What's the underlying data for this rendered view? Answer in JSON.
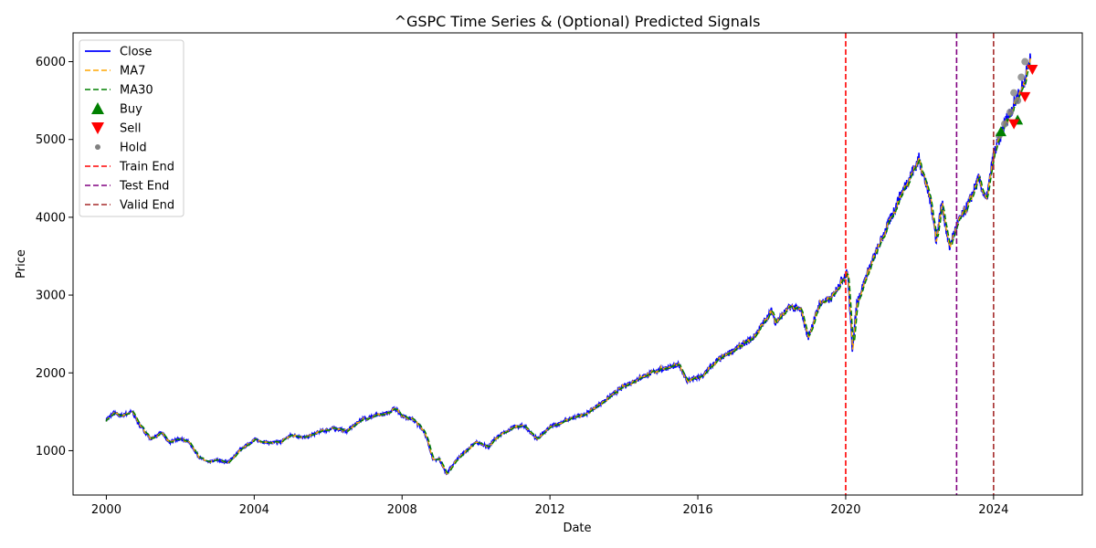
{
  "chart_data": {
    "type": "line",
    "title": "^GSPC Time Series & (Optional) Predicted Signals",
    "xlabel": "Date",
    "ylabel": "Price",
    "xlim": [
      1999.1,
      2026.4
    ],
    "ylim": [
      430,
      6370
    ],
    "x_ticks": [
      2000,
      2004,
      2008,
      2012,
      2016,
      2020,
      2024
    ],
    "x_tick_labels": [
      "2000",
      "2004",
      "2008",
      "2012",
      "2016",
      "2020",
      "2024"
    ],
    "y_ticks": [
      1000,
      2000,
      3000,
      4000,
      5000,
      6000
    ],
    "y_tick_labels": [
      "1000",
      "2000",
      "3000",
      "4000",
      "5000",
      "6000"
    ],
    "grid": false,
    "legend_position": "upper-left",
    "legend": [
      {
        "label": "Close",
        "kind": "solid-line",
        "color": "#0000ff"
      },
      {
        "label": "MA7",
        "kind": "dashed-line",
        "color": "#ffa500"
      },
      {
        "label": "MA30",
        "kind": "dashed-line",
        "color": "#008000"
      },
      {
        "label": "Buy",
        "kind": "triangle-up",
        "color": "#008000"
      },
      {
        "label": "Sell",
        "kind": "triangle-down",
        "color": "#ff0000"
      },
      {
        "label": "Hold",
        "kind": "dot",
        "color": "#808080"
      },
      {
        "label": "Train End",
        "kind": "dashed-line",
        "color": "#ff0000"
      },
      {
        "label": "Test End",
        "kind": "dashed-line",
        "color": "#800080"
      },
      {
        "label": "Valid End",
        "kind": "dashed-line",
        "color": "#a52a2a"
      }
    ],
    "close": {
      "x": [
        2000.0,
        2000.2,
        2000.4,
        2000.7,
        2000.9,
        2001.2,
        2001.5,
        2001.7,
        2001.9,
        2002.2,
        2002.5,
        2002.75,
        2003.0,
        2003.3,
        2003.6,
        2004.0,
        2004.4,
        2004.7,
        2005.0,
        2005.4,
        2005.8,
        2006.2,
        2006.5,
        2006.9,
        2007.3,
        2007.6,
        2007.8,
        2008.0,
        2008.3,
        2008.6,
        2008.85,
        2009.0,
        2009.2,
        2009.5,
        2010.0,
        2010.35,
        2010.5,
        2011.0,
        2011.3,
        2011.65,
        2012.0,
        2012.5,
        2013.0,
        2013.5,
        2014.0,
        2014.5,
        2015.0,
        2015.5,
        2015.7,
        2016.1,
        2016.5,
        2017.0,
        2017.5,
        2018.0,
        2018.1,
        2018.5,
        2018.8,
        2018.98,
        2019.3,
        2019.6,
        2019.9,
        2020.05,
        2020.18,
        2020.3,
        2020.6,
        2021.0,
        2021.5,
        2021.98,
        2022.3,
        2022.45,
        2022.6,
        2022.8,
        2023.0,
        2023.3,
        2023.6,
        2023.8,
        2024.0,
        2024.3,
        2024.6,
        2024.8,
        2025.0
      ],
      "y": [
        1400,
        1480,
        1450,
        1500,
        1330,
        1150,
        1230,
        1100,
        1150,
        1130,
        920,
        850,
        880,
        850,
        1000,
        1140,
        1100,
        1110,
        1200,
        1170,
        1250,
        1290,
        1250,
        1400,
        1450,
        1480,
        1550,
        1450,
        1400,
        1250,
        870,
        900,
        700,
        900,
        1110,
        1050,
        1150,
        1300,
        1320,
        1150,
        1300,
        1400,
        1480,
        1650,
        1830,
        1950,
        2050,
        2100,
        1900,
        1950,
        2150,
        2300,
        2450,
        2800,
        2650,
        2850,
        2800,
        2450,
        2900,
        2950,
        3200,
        3300,
        2300,
        2900,
        3300,
        3750,
        4300,
        4750,
        4200,
        3700,
        4200,
        3600,
        3900,
        4150,
        4500,
        4200,
        4800,
        5200,
        5500,
        5700,
        6050
      ]
    },
    "vertical_markers": [
      {
        "label": "Train End",
        "x": 2020.0
      },
      {
        "label": "Test End",
        "x": 2023.0
      },
      {
        "label": "Valid End",
        "x": 2024.0
      }
    ],
    "signals": {
      "hold": {
        "x": [
          2024.15,
          2024.3,
          2024.45,
          2024.55,
          2024.65,
          2024.75,
          2024.85
        ],
        "y": [
          5050,
          5200,
          5350,
          5600,
          5500,
          5800,
          6000
        ]
      },
      "buy": {
        "x": [
          2024.2,
          2024.65
        ],
        "y": [
          5100,
          5250
        ]
      },
      "sell": {
        "x": [
          2024.55,
          2024.85,
          2025.05
        ],
        "y": [
          5200,
          5550,
          5900
        ]
      }
    }
  },
  "colors": {
    "close": "#0000ff",
    "ma7": "#ffa500",
    "ma30": "#008000",
    "buy": "#008000",
    "sell": "#ff0000",
    "hold": "#808080",
    "train_end": "#ff0000",
    "test_end": "#800080",
    "valid_end": "#a52a2a"
  }
}
